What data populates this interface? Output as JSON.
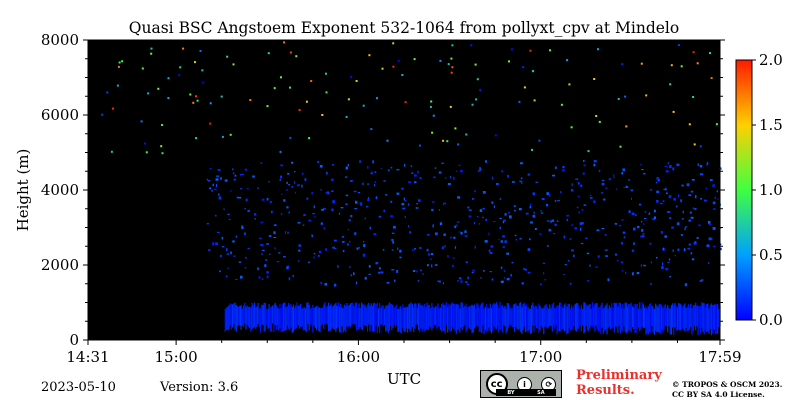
{
  "chart_data": {
    "type": "heatmap",
    "title": "Quasi BSC Angstoem Exponent 532-1064 from pollyxt_cpv at Mindelo",
    "xlabel": "UTC",
    "ylabel": "Height (m)",
    "x_start": "14:31",
    "x_end": "17:59",
    "xlim_minutes_utc": [
      871,
      1079
    ],
    "ylim": [
      0,
      8000
    ],
    "x_ticks": [
      {
        "label": "14:31",
        "minute": 871
      },
      {
        "label": "15:00",
        "minute": 900
      },
      {
        "label": "16:00",
        "minute": 960
      },
      {
        "label": "17:00",
        "minute": 1020
      },
      {
        "label": "17:59",
        "minute": 1079
      }
    ],
    "y_ticks": [
      "0",
      "2000",
      "4000",
      "6000",
      "8000"
    ],
    "y_tick_values": [
      0,
      2000,
      4000,
      6000,
      8000
    ],
    "colorbar": {
      "min": 0.0,
      "max": 2.0,
      "tick_labels": [
        "0.0",
        "0.5",
        "1.0",
        "1.5",
        "2.0"
      ],
      "tick_values": [
        0.0,
        0.5,
        1.0,
        1.5,
        2.0
      ],
      "colormap": "jet"
    },
    "background_color": "#000000",
    "layers": [
      {
        "minute_start": 916,
        "minute_end": 1079,
        "height_bottom": 300,
        "height_top": 950,
        "value": 0.1
      },
      {
        "minute_start": 910,
        "minute_end": 1079,
        "height_bottom": 1500,
        "height_top": 4800,
        "value": 0.2
      },
      {
        "minute_start": 900,
        "minute_end": 1079,
        "height_bottom": 5000,
        "height_top": 8000,
        "value": 1.0
      }
    ]
  },
  "footer": {
    "date": "2023-05-10",
    "version": "Version: 3.6",
    "preliminary": "Preliminary\nResults.",
    "copyright": "© TROPOS & OSCM 2023.\nCC BY SA 4.0 License.",
    "license_badge": {
      "main": "cc",
      "by": "BY",
      "sa": "SA"
    }
  }
}
